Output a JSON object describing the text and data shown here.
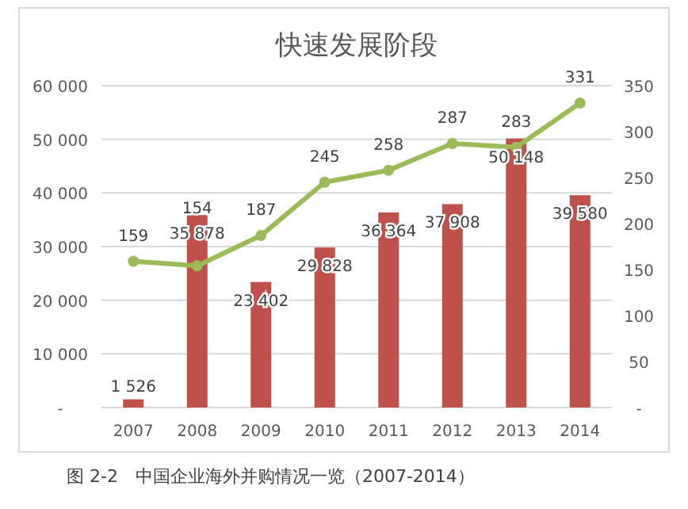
{
  "chart_data": {
    "type": "bar",
    "title": "快速发展阶段",
    "categories": [
      "2007",
      "2008",
      "2009",
      "2010",
      "2011",
      "2012",
      "2013",
      "2014"
    ],
    "series": [
      {
        "color": "#c0504d",
        "values": [
          1526,
          35878,
          23402,
          29828,
          36364,
          37908,
          50148,
          39580
        ],
        "value_labels": [
          "1 526",
          "35 878",
          "23 402",
          "29 828",
          "36 364",
          "37 908",
          "50 148",
          "39 580"
        ]
      },
      {
        "type": "line",
        "axis": "y2",
        "color": "#9bbb59",
        "marker": "circle",
        "values": [
          159,
          154,
          187,
          245,
          258,
          287,
          283,
          331
        ],
        "value_labels": [
          "159",
          "154",
          "187",
          "245",
          "258",
          "287",
          "283",
          "331"
        ]
      }
    ],
    "ylim": [
      0,
      60000
    ],
    "yticks": [
      {
        "value": 0,
        "label": "-"
      },
      {
        "value": 10000,
        "label": "10 000"
      },
      {
        "value": 20000,
        "label": "20 000"
      },
      {
        "value": 30000,
        "label": "30 000"
      },
      {
        "value": 40000,
        "label": "40 000"
      },
      {
        "value": 50000,
        "label": "50 000"
      },
      {
        "value": 60000,
        "label": "60 000"
      }
    ],
    "y2lim": [
      0,
      350
    ],
    "y2ticks": [
      {
        "value": 0,
        "label": "-"
      },
      50,
      100,
      150,
      200,
      250,
      300,
      350
    ],
    "grid": "y",
    "annotations": [
      "图 2-2　中国企业海外并购情况一览（2007-2014）"
    ]
  }
}
